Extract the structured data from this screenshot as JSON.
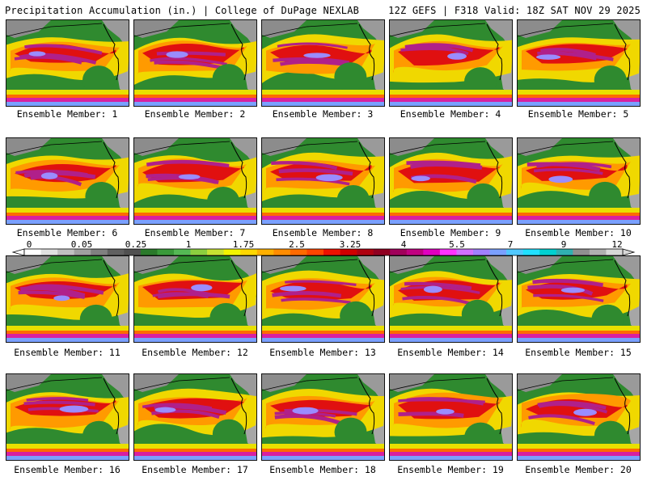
{
  "title_left": "Precipitation Accumulation (in.) | College of DuPage NEXLAB",
  "title_right": "12Z GEFS | F318 Valid: 18Z SAT NOV 29 2025",
  "member_label_prefix": "Ensemble Member: ",
  "members": [
    1,
    2,
    3,
    4,
    5,
    6,
    7,
    8,
    9,
    10,
    11,
    12,
    13,
    14,
    15,
    16,
    17,
    18,
    19,
    20
  ],
  "colorbar": {
    "tick_labels": [
      "0",
      "0.05",
      "0.25",
      "1",
      "1.75",
      "2.5",
      "3.25",
      "4",
      "5.5",
      "7",
      "9",
      "12"
    ],
    "colors": [
      "#ffffff",
      "#e0e0e0",
      "#c0c0c0",
      "#a0a0a0",
      "#808080",
      "#606060",
      "#505050",
      "#2a7a2a",
      "#3a9a3a",
      "#55b855",
      "#8ccf3f",
      "#c8e232",
      "#f3f300",
      "#ffd700",
      "#ffb000",
      "#ff8c00",
      "#ff6a00",
      "#ff4500",
      "#ee1100",
      "#d00000",
      "#b00010",
      "#900020",
      "#a0005a",
      "#c00080",
      "#e000c0",
      "#ff33ff",
      "#d070ff",
      "#a080ff",
      "#7aa0ff",
      "#50c8ff",
      "#20e0ff",
      "#00d0d0",
      "#30b0b0",
      "#909090",
      "#b0b0b0",
      "#d8d8d8"
    ]
  }
}
